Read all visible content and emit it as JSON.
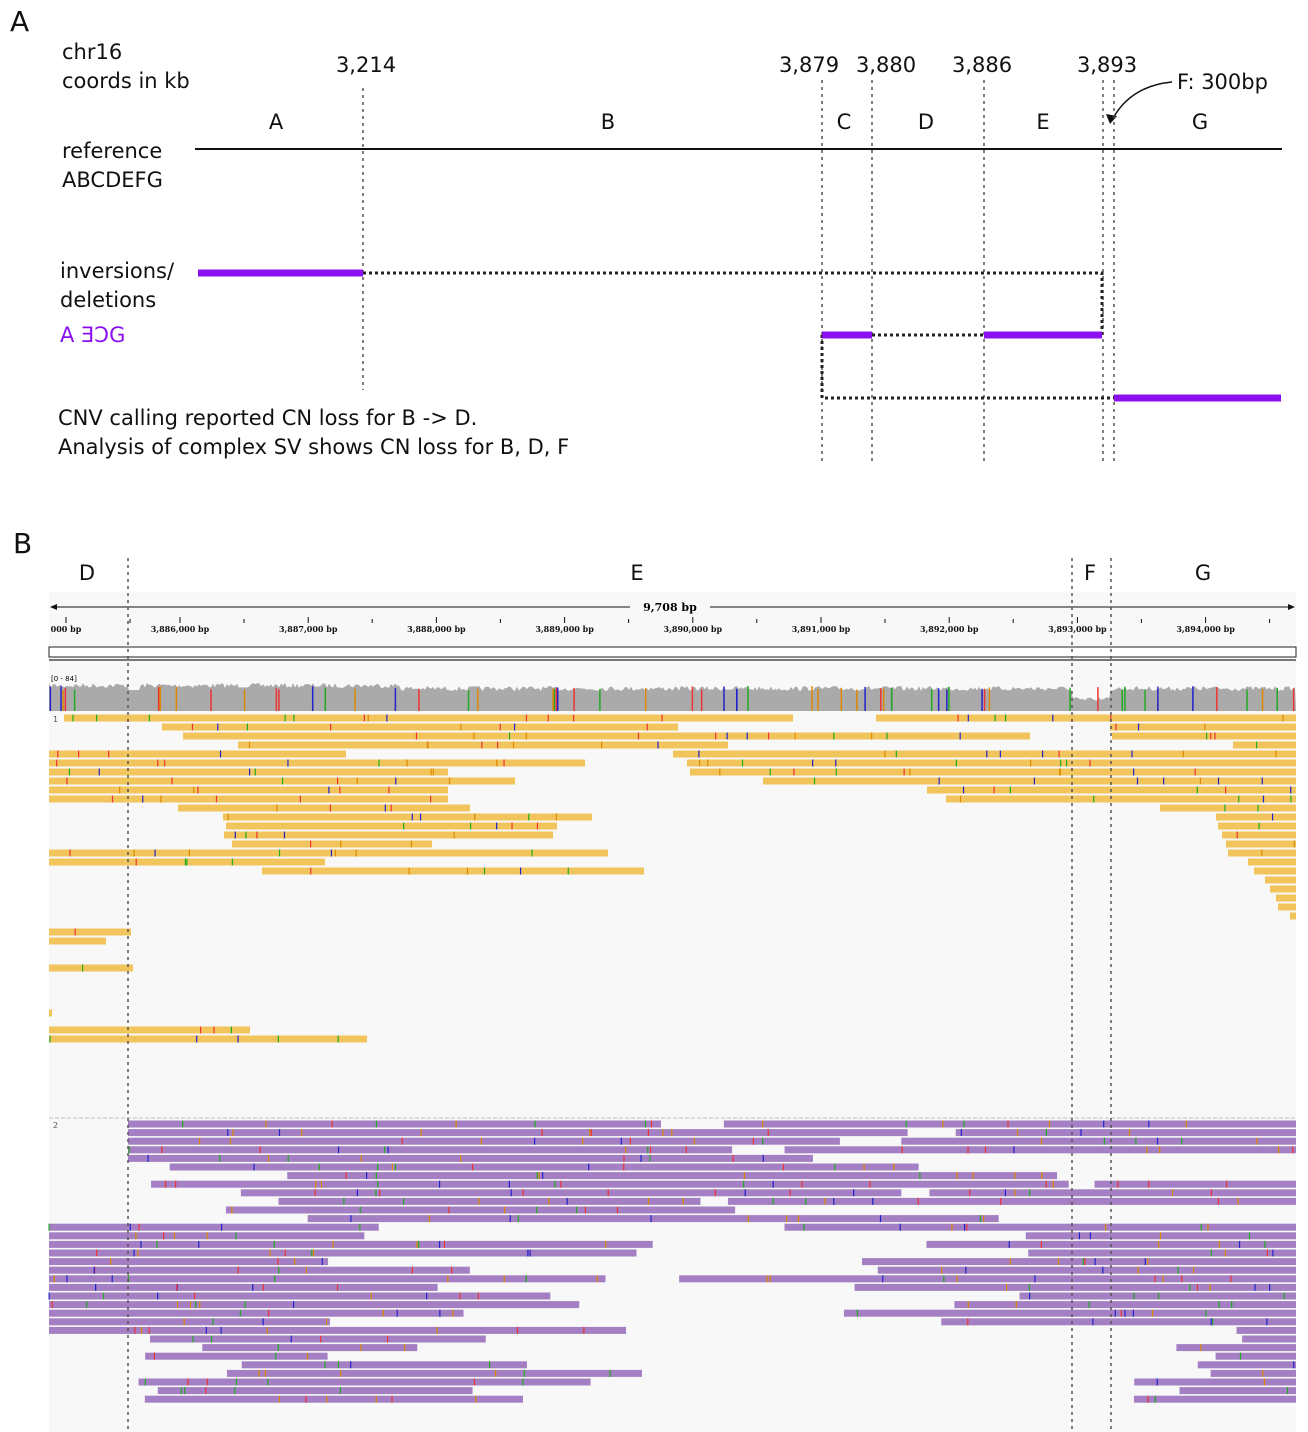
{
  "panel_a": {
    "label": "A",
    "chrom": "chr16",
    "coords_note": "coords in kb",
    "coords": [
      "3,214",
      "3,879",
      "3,880",
      "3,886",
      "3,893"
    ],
    "segments": [
      "A",
      "B",
      "C",
      "D",
      "E",
      "G"
    ],
    "f_note": "F: 300bp",
    "reference": [
      "reference",
      "ABCDEFG"
    ],
    "inversions": [
      "inversions/",
      "deletions"
    ],
    "derived": "A ƎↃG",
    "notes": [
      "CNV calling reported CN loss for B -> D.",
      "Analysis of complex SV shows CN loss for B, D, F"
    ]
  },
  "panel_b": {
    "label": "B",
    "segments": [
      "D",
      "E",
      "F",
      "G"
    ],
    "span": "9,708 bp",
    "ruler_ticks": [
      "000 bp",
      "3,886,000 bp",
      "3,887,000 bp",
      "3,888,000 bp",
      "3,889,000 bp",
      "3,890,000 bp",
      "3,891,000 bp",
      "3,892,000 bp",
      "3,893,000 bp",
      "3,894,000 bp"
    ],
    "coverage_range": "[0 - 84]",
    "groups": [
      "1",
      "2"
    ]
  }
}
